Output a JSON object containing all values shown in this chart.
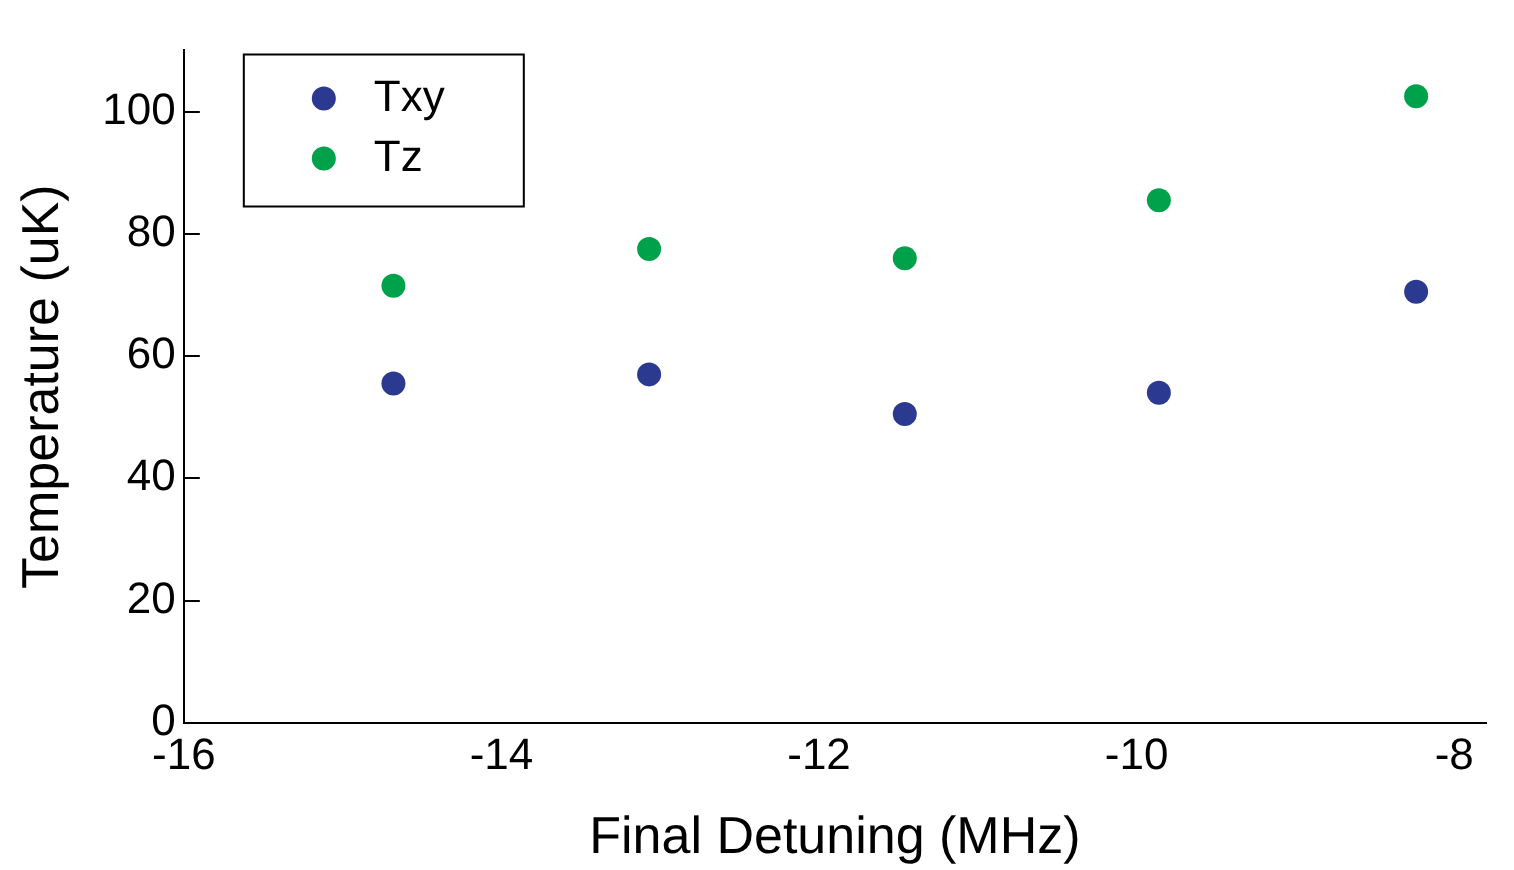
{
  "chart_data": {
    "type": "scatter",
    "xlabel": "Final Detuning (MHz)",
    "ylabel": "Temperature (uK)",
    "x": [
      -14.68,
      -13.07,
      -11.46,
      -9.86,
      -8.24
    ],
    "series": [
      {
        "name": "Txy",
        "color": "#2b3990",
        "values": [
          55.5,
          57,
          50.5,
          54,
          70.5
        ]
      },
      {
        "name": "Tz",
        "color": "#00a14b",
        "values": [
          71.5,
          77.5,
          76,
          85.5,
          102.5
        ]
      }
    ],
    "xlim": [
      -16,
      -7.8
    ],
    "xticks": [
      -16,
      -14,
      -12,
      -10,
      -8
    ],
    "ylim": [
      0,
      110
    ],
    "yticks": [
      0,
      20,
      40,
      60,
      80,
      100
    ],
    "grid": false,
    "legend": "top left",
    "marker": "circle"
  }
}
